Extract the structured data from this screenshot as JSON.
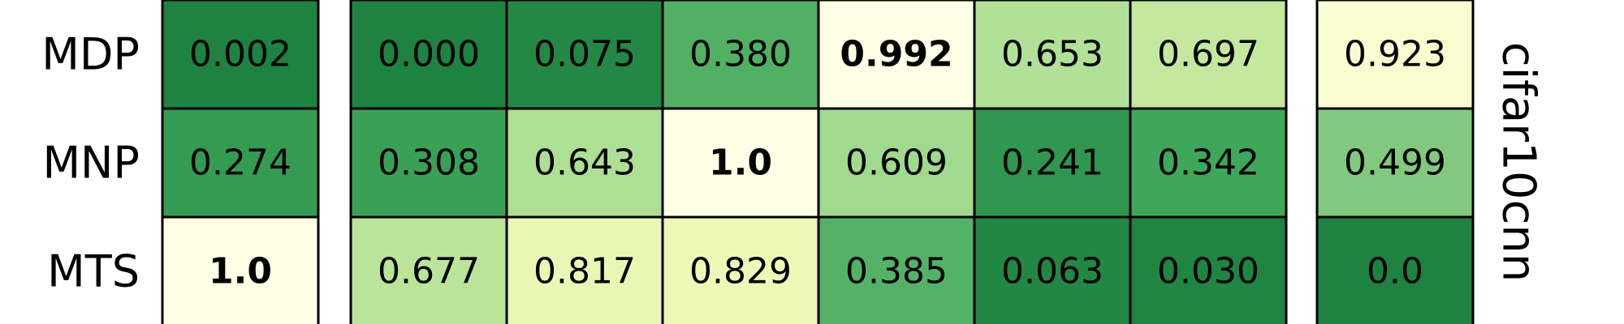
{
  "chart_data": {
    "type": "heatmap",
    "row_labels": [
      "MDP",
      "MNP",
      "MTS"
    ],
    "side_label": "cifar10cnn",
    "colormap": "YlGn",
    "blocks": [
      {
        "cells": [
          [
            "0.002"
          ],
          [
            "0.274"
          ],
          [
            "1.0"
          ]
        ],
        "values": [
          [
            0.002
          ],
          [
            0.274
          ],
          [
            1.0
          ]
        ],
        "bold": [
          [
            false
          ],
          [
            false
          ],
          [
            true
          ]
        ]
      },
      {
        "cells": [
          [
            "0.000",
            "0.075",
            "0.380",
            "0.992",
            "0.653",
            "0.697"
          ],
          [
            "0.308",
            "0.643",
            "1.0",
            "0.609",
            "0.241",
            "0.342"
          ],
          [
            "0.677",
            "0.817",
            "0.829",
            "0.385",
            "0.063",
            "0.030"
          ]
        ],
        "values": [
          [
            0.0,
            0.075,
            0.38,
            0.992,
            0.653,
            0.697
          ],
          [
            0.308,
            0.643,
            1.0,
            0.609,
            0.241,
            0.342
          ],
          [
            0.677,
            0.817,
            0.829,
            0.385,
            0.063,
            0.03
          ]
        ],
        "bold": [
          [
            false,
            false,
            false,
            true,
            false,
            false
          ],
          [
            false,
            false,
            true,
            false,
            false,
            false
          ],
          [
            false,
            false,
            false,
            false,
            false,
            false
          ]
        ]
      },
      {
        "cells": [
          [
            "0.923"
          ],
          [
            "0.499"
          ],
          [
            "0.0"
          ]
        ],
        "values": [
          [
            0.923
          ],
          [
            0.499
          ],
          [
            0.0
          ]
        ],
        "bold": [
          [
            false
          ],
          [
            false
          ],
          [
            false
          ]
        ]
      }
    ]
  }
}
